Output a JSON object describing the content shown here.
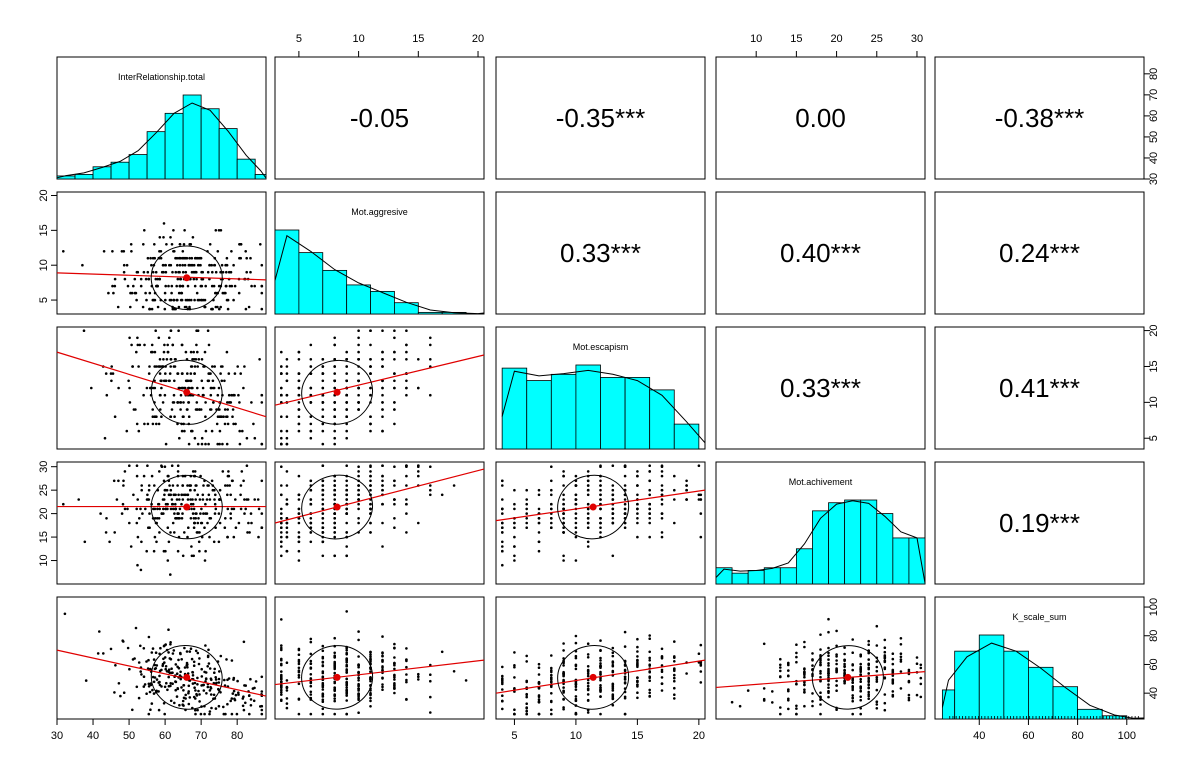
{
  "chart_data": {
    "type": "scatter",
    "subtype": "pairs-panels (scatterplot matrix)",
    "variables": [
      {
        "name": "InterRelationship.total",
        "range": [
          30,
          88
        ],
        "ticks": [
          30,
          40,
          50,
          60,
          70,
          80
        ],
        "mean": 66,
        "sd": 10,
        "histogram": {
          "bins": [
            30,
            35,
            40,
            45,
            50,
            55,
            60,
            65,
            70,
            75,
            80,
            85,
            88
          ],
          "counts": [
            2,
            3,
            8,
            11,
            16,
            31,
            43,
            55,
            46,
            33,
            13,
            3
          ]
        }
      },
      {
        "name": "Mot.aggresive",
        "range": [
          3,
          20.5
        ],
        "ticks": [
          5,
          10,
          15,
          20
        ],
        "mean": 8.2,
        "sd": 3.4,
        "histogram": {
          "bins": [
            3,
            5,
            7,
            9,
            11,
            13,
            15,
            17,
            19,
            21
          ],
          "counts": [
            52,
            38,
            27,
            18,
            14,
            7,
            1,
            1,
            0
          ]
        }
      },
      {
        "name": "Mot.escapism",
        "range": [
          3.5,
          20.5
        ],
        "ticks": [
          5,
          10,
          15,
          20
        ],
        "mean": 11.4,
        "sd": 4.2,
        "histogram": {
          "bins": [
            4,
            6,
            8,
            10,
            12,
            14,
            16,
            18,
            20,
            21
          ],
          "counts": [
            26,
            22,
            24,
            27,
            23,
            23,
            19,
            8,
            0
          ]
        }
      },
      {
        "name": "Mot.achivement",
        "range": [
          5,
          31
        ],
        "ticks": [
          10,
          15,
          20,
          25,
          30
        ],
        "mean": 21.4,
        "sd": 5,
        "histogram": {
          "bins": [
            5,
            7,
            9,
            11,
            13,
            15,
            17,
            19,
            21,
            23,
            25,
            27,
            29,
            31
          ],
          "counts": [
            6,
            4,
            5,
            6,
            6,
            13,
            27,
            30,
            31,
            31,
            26,
            17,
            17
          ]
        }
      },
      {
        "name": "K_scale_sum",
        "range": [
          22,
          107
        ],
        "ticks": [
          40,
          60,
          80,
          100
        ],
        "mean": 51,
        "sd": 14,
        "histogram": {
          "bins": [
            25,
            30,
            40,
            50,
            60,
            70,
            80,
            90,
            100,
            105
          ],
          "counts": [
            9,
            21,
            26,
            21,
            16,
            10,
            3,
            1,
            0
          ]
        }
      }
    ],
    "correlations": [
      {
        "row": 0,
        "col": 1,
        "label": "-0.05"
      },
      {
        "row": 0,
        "col": 2,
        "label": "-0.35***"
      },
      {
        "row": 0,
        "col": 3,
        "label": "0.00"
      },
      {
        "row": 0,
        "col": 4,
        "label": "-0.38***"
      },
      {
        "row": 1,
        "col": 2,
        "label": "0.33***"
      },
      {
        "row": 1,
        "col": 3,
        "label": "0.40***"
      },
      {
        "row": 1,
        "col": 4,
        "label": "0.24***"
      },
      {
        "row": 2,
        "col": 3,
        "label": "0.33***"
      },
      {
        "row": 2,
        "col": 4,
        "label": "0.41***"
      },
      {
        "row": 3,
        "col": 4,
        "label": "0.19***"
      }
    ],
    "regression_lines": [
      {
        "row": 1,
        "col": 0,
        "y_at_xmin": 8.9,
        "y_at_xmax": 7.9
      },
      {
        "row": 2,
        "col": 0,
        "y_at_xmin": 17.0,
        "y_at_xmax": 8.0
      },
      {
        "row": 2,
        "col": 1,
        "y_at_xmin": 9.6,
        "y_at_xmax": 16.6
      },
      {
        "row": 3,
        "col": 0,
        "y_at_xmin": 21.5,
        "y_at_xmax": 21.5
      },
      {
        "row": 3,
        "col": 1,
        "y_at_xmin": 18.0,
        "y_at_xmax": 29.5
      },
      {
        "row": 3,
        "col": 2,
        "y_at_xmin": 18.5,
        "y_at_xmax": 25.0
      },
      {
        "row": 4,
        "col": 0,
        "y_at_xmin": 70,
        "y_at_xmax": 38
      },
      {
        "row": 4,
        "col": 1,
        "y_at_xmin": 46,
        "y_at_xmax": 63
      },
      {
        "row": 4,
        "col": 2,
        "y_at_xmin": 40,
        "y_at_xmax": 63
      },
      {
        "row": 4,
        "col": 3,
        "y_at_xmin": 44,
        "y_at_xmax": 55
      }
    ],
    "colors": {
      "histogram_fill": "#00ffff",
      "fit_line": "#e00000",
      "points": "#000000"
    },
    "grid": false,
    "legend": "none"
  }
}
